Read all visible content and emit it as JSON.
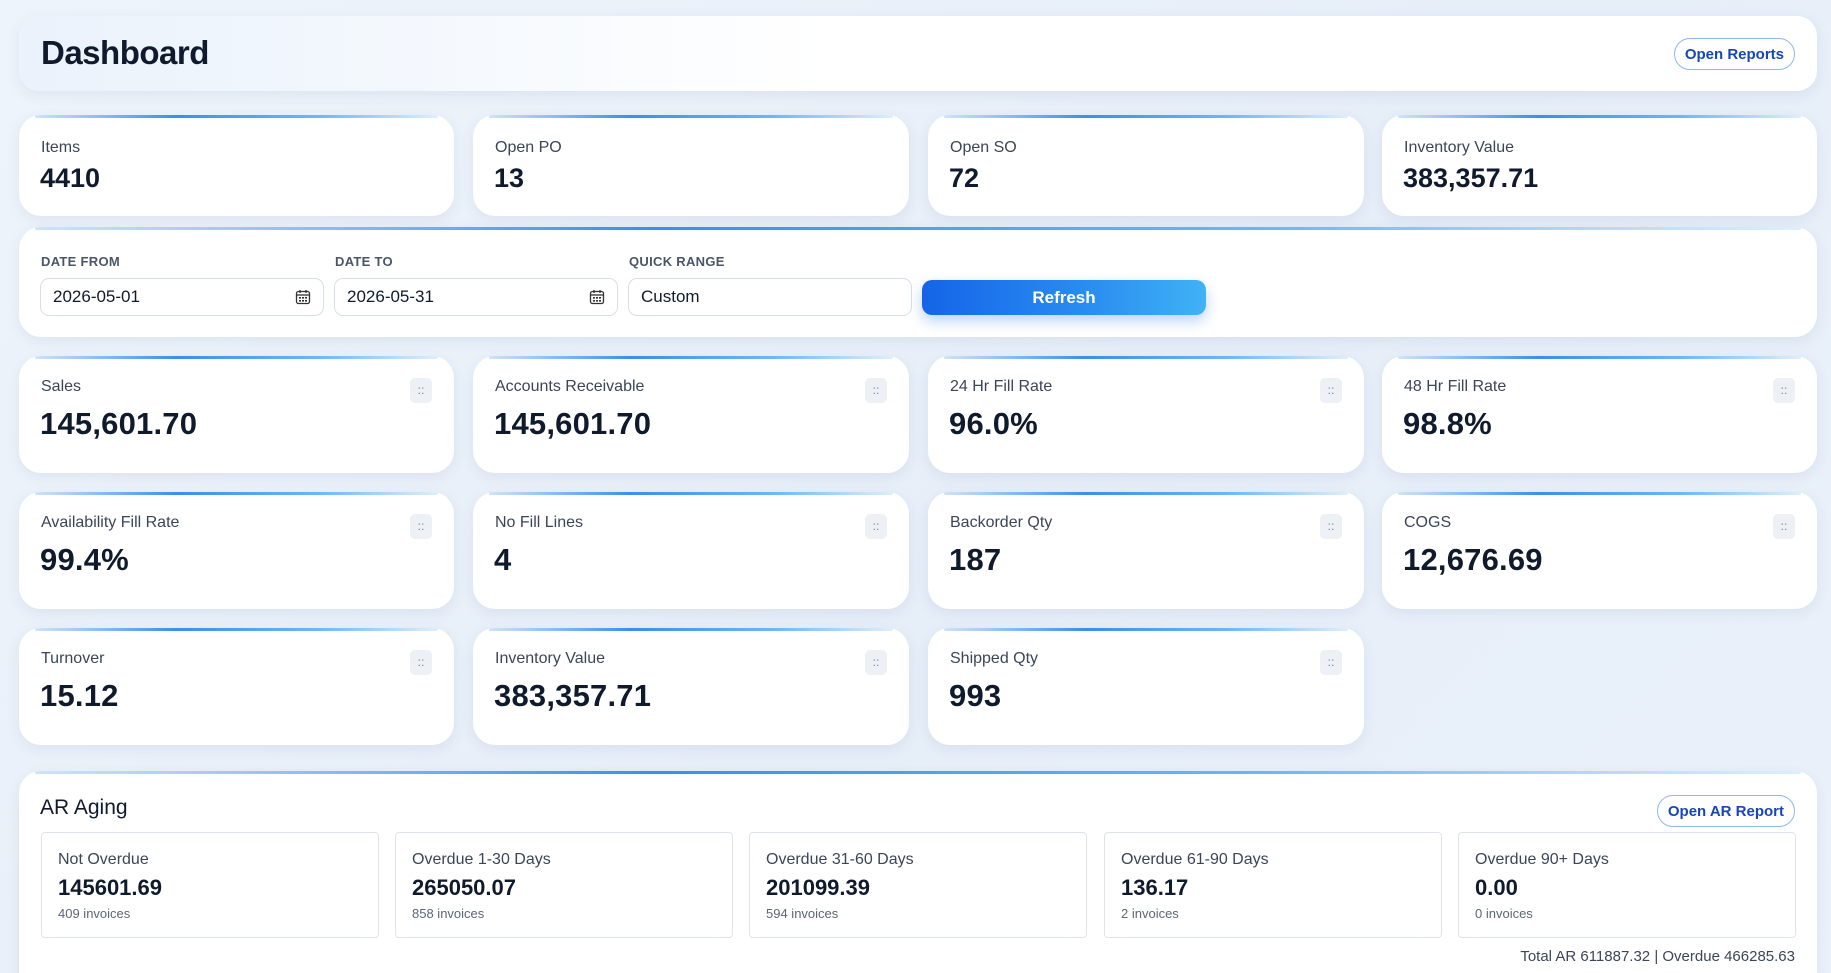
{
  "header": {
    "title": "Dashboard",
    "open_reports_label": "Open Reports"
  },
  "kpis": [
    {
      "label": "Items",
      "value": "4410"
    },
    {
      "label": "Open PO",
      "value": "13"
    },
    {
      "label": "Open SO",
      "value": "72"
    },
    {
      "label": "Inventory Value",
      "value": "383,357.71"
    }
  ],
  "filters": {
    "date_from_label": "DATE FROM",
    "date_from_value": "2026-05-01",
    "date_to_label": "DATE TO",
    "date_to_value": "2026-05-31",
    "quick_range_label": "QUICK RANGE",
    "quick_range_value": "Custom",
    "refresh_label": "Refresh"
  },
  "metrics": [
    {
      "label": "Sales",
      "value": "145,601.70"
    },
    {
      "label": "Accounts Receivable",
      "value": "145,601.70"
    },
    {
      "label": "24 Hr Fill Rate",
      "value": "96.0%"
    },
    {
      "label": "48 Hr Fill Rate",
      "value": "98.8%"
    },
    {
      "label": "Availability Fill Rate",
      "value": "99.4%"
    },
    {
      "label": "No Fill Lines",
      "value": "4"
    },
    {
      "label": "Backorder Qty",
      "value": "187"
    },
    {
      "label": "COGS",
      "value": "12,676.69"
    },
    {
      "label": "Turnover",
      "value": "15.12"
    },
    {
      "label": "Inventory Value",
      "value": "383,357.71"
    },
    {
      "label": "Shipped Qty",
      "value": "993"
    }
  ],
  "drag_handle_glyph": "::",
  "ar_aging": {
    "title": "AR Aging",
    "open_report_label": "Open AR Report",
    "buckets": [
      {
        "label": "Not Overdue",
        "value": "145601.69",
        "count": "409 invoices"
      },
      {
        "label": "Overdue 1-30 Days",
        "value": "265050.07",
        "count": "858 invoices"
      },
      {
        "label": "Overdue 31-60 Days",
        "value": "201099.39",
        "count": "594 invoices"
      },
      {
        "label": "Overdue 61-90 Days",
        "value": "136.17",
        "count": "2 invoices"
      },
      {
        "label": "Overdue 90+ Days",
        "value": "0.00",
        "count": "0 invoices"
      }
    ],
    "total_text": "Total AR 611887.32 | Overdue 466285.63"
  },
  "colors": {
    "accent": "#1564e8",
    "accent_light": "#40b2f6",
    "text": "#0f1b2d",
    "link": "#1747b5"
  }
}
